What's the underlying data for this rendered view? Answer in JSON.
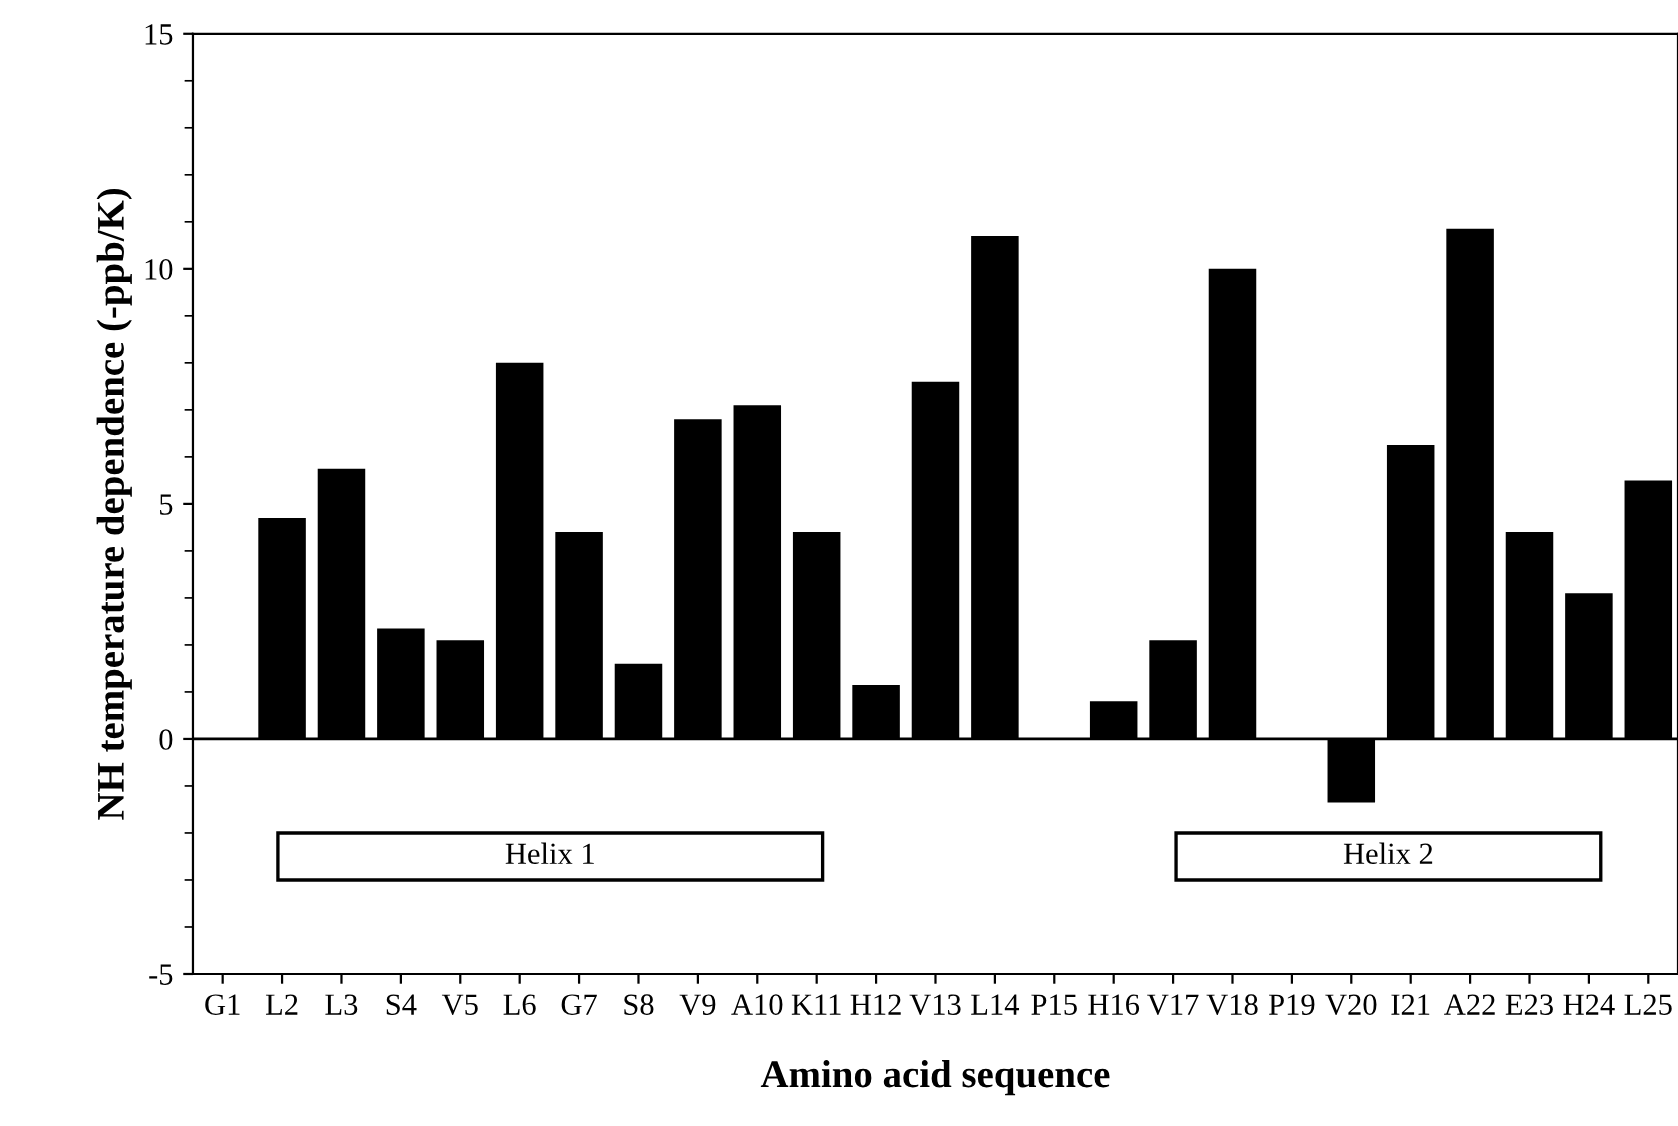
{
  "chart_data": {
    "type": "bar",
    "xlabel": "Amino acid sequence",
    "ylabel": "NH temperature dependence (-ppb/K)",
    "categories": [
      "G1",
      "L2",
      "L3",
      "S4",
      "V5",
      "L6",
      "G7",
      "S8",
      "V9",
      "A10",
      "K11",
      "H12",
      "V13",
      "L14",
      "P15",
      "H16",
      "V17",
      "V18",
      "P19",
      "V20",
      "I21",
      "A22",
      "E23",
      "H24",
      "L25"
    ],
    "values": [
      null,
      4.7,
      5.75,
      2.35,
      2.1,
      8.0,
      4.4,
      1.6,
      6.8,
      7.1,
      4.4,
      1.15,
      7.6,
      10.7,
      null,
      0.8,
      2.1,
      10.0,
      null,
      -1.35,
      6.25,
      10.85,
      4.4,
      3.1,
      5.5
    ],
    "color": "#000000",
    "ylim": [
      -5,
      15
    ],
    "yticks": [
      -5,
      0,
      5,
      10,
      15
    ],
    "ref_lines": [
      {
        "axis": "y",
        "value": 0,
        "color": "#000000"
      }
    ],
    "annotations": [
      "Helix 1",
      "Helix 2"
    ],
    "grid": false,
    "legend": false
  }
}
